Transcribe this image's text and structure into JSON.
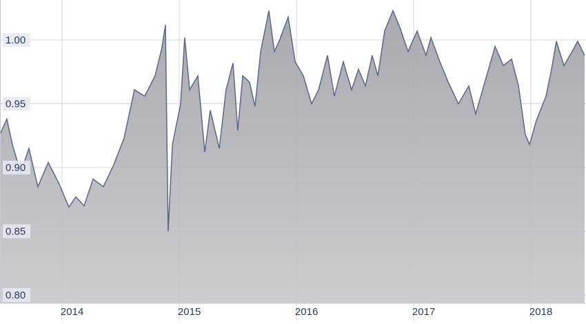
{
  "chart_data": {
    "type": "area",
    "color": "#5b6785",
    "fill": "#b4b5ba",
    "grid": true,
    "xlim": [
      2013.471,
      2018.471
    ],
    "xticks": [
      2014,
      2015,
      2016,
      2017,
      2018
    ],
    "ylim": [
      0.7935,
      1.0314
    ],
    "yticks": [
      {
        "value": 0.8,
        "label": "0.80"
      },
      {
        "value": 0.85,
        "label": "0.85"
      },
      {
        "value": 0.9,
        "label": "0.90"
      },
      {
        "value": 0.95,
        "label": "0.95"
      },
      {
        "value": 1.0,
        "label": "1.00"
      }
    ],
    "x": [
      2013.471,
      2013.529,
      2013.577,
      2013.647,
      2013.718,
      2013.794,
      2013.883,
      2013.971,
      2014.059,
      2014.118,
      2014.189,
      2014.265,
      2014.353,
      2014.441,
      2014.529,
      2014.618,
      2014.706,
      2014.794,
      2014.853,
      2014.883,
      2014.906,
      2014.942,
      2015.012,
      2015.047,
      2015.089,
      2015.159,
      2015.218,
      2015.265,
      2015.342,
      2015.4,
      2015.459,
      2015.5,
      2015.542,
      2015.6,
      2015.647,
      2015.695,
      2015.765,
      2015.812,
      2015.853,
      2015.93,
      2015.989,
      2016.059,
      2016.13,
      2016.189,
      2016.265,
      2016.324,
      2016.4,
      2016.471,
      2016.53,
      2016.589,
      2016.647,
      2016.695,
      2016.753,
      2016.824,
      2016.883,
      2016.953,
      2017.03,
      2017.106,
      2017.148,
      2017.224,
      2017.295,
      2017.383,
      2017.471,
      2017.53,
      2017.589,
      2017.695,
      2017.765,
      2017.836,
      2017.895,
      2017.953,
      2017.989,
      2018.048,
      2018.13,
      2018.177,
      2018.218,
      2018.283,
      2018.353,
      2018.4,
      2018.459
    ],
    "values": [
      0.926,
      0.938,
      0.918,
      0.896,
      0.915,
      0.885,
      0.904,
      0.888,
      0.869,
      0.877,
      0.87,
      0.891,
      0.885,
      0.902,
      0.923,
      0.961,
      0.956,
      0.972,
      0.994,
      1.012,
      0.85,
      0.918,
      0.95,
      1.002,
      0.961,
      0.972,
      0.912,
      0.945,
      0.915,
      0.961,
      0.982,
      0.929,
      0.972,
      0.967,
      0.948,
      0.991,
      1.023,
      0.991,
      0.999,
      1.018,
      0.983,
      0.972,
      0.95,
      0.961,
      0.988,
      0.956,
      0.983,
      0.961,
      0.977,
      0.964,
      0.988,
      0.972,
      1.007,
      1.023,
      1.01,
      0.991,
      1.007,
      0.988,
      1.002,
      0.983,
      0.967,
      0.95,
      0.964,
      0.942,
      0.961,
      0.995,
      0.98,
      0.985,
      0.964,
      0.926,
      0.918,
      0.937,
      0.956,
      0.977,
      0.999,
      0.98,
      0.991,
      0.999,
      0.988
    ]
  }
}
